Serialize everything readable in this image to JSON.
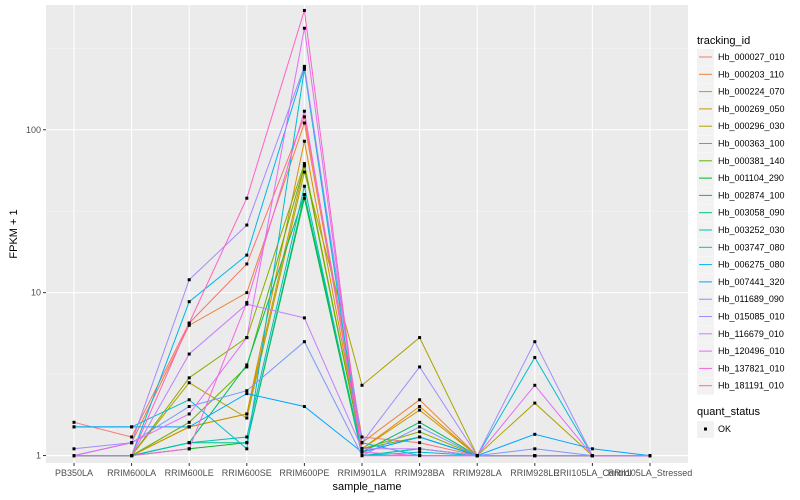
{
  "chart_data": {
    "type": "line",
    "xlabel": "sample_name",
    "ylabel": "FPKM + 1",
    "y_scale": "log10",
    "y_ticks": [
      "1",
      "10",
      "100"
    ],
    "categories": [
      "PB350LA",
      "RRIM600LA",
      "RRIM600LE",
      "RRIM600SE",
      "RRIM600PE",
      "RRIM901LA",
      "RRIM928BA",
      "RRIM928LA",
      "RRIM928LE",
      "RRII105LA_Control",
      "RRII105LA_Stressed"
    ],
    "legend_title": "tracking_id",
    "legend2_title": "quant_status",
    "legend2_entries": [
      "OK"
    ],
    "grid": true,
    "legend_position": "right",
    "series": [
      {
        "name": "Hb_000027_010",
        "color": "#F8766D",
        "values": [
          1.6,
          1.3,
          6.5,
          15,
          120,
          1.3,
          1.2,
          1,
          1,
          1,
          1
        ]
      },
      {
        "name": "Hb_000203_110",
        "color": "#EC8239",
        "values": [
          1,
          1.2,
          6.3,
          10,
          110,
          1.2,
          2.2,
          1,
          1,
          1,
          1
        ]
      },
      {
        "name": "Hb_000224_070",
        "color": "#DB8E00",
        "values": [
          1,
          1,
          1.5,
          1.8,
          85,
          1.1,
          2,
          1,
          1,
          1,
          1
        ]
      },
      {
        "name": "Hb_000269_050",
        "color": "#C79800",
        "values": [
          1,
          1,
          1.5,
          1.8,
          60,
          1.1,
          1.9,
          1,
          1,
          1,
          1
        ]
      },
      {
        "name": "Hb_000296_030",
        "color": "#AEA200",
        "values": [
          1,
          1,
          2.8,
          1.7,
          55,
          2.7,
          5.3,
          1,
          2.1,
          1,
          1
        ]
      },
      {
        "name": "Hb_000363_100",
        "color": "#8FAA00",
        "values": [
          1,
          1,
          3,
          5.3,
          62,
          1.1,
          1.4,
          1,
          1,
          1,
          1
        ]
      },
      {
        "name": "Hb_000381_140",
        "color": "#64B200",
        "values": [
          1,
          1,
          1.6,
          3.5,
          60,
          1.1,
          1.3,
          1,
          1,
          1,
          1
        ]
      },
      {
        "name": "Hb_001104_290",
        "color": "#00B81F",
        "values": [
          1,
          1,
          1.1,
          1.2,
          38,
          1,
          1.1,
          1,
          1,
          1,
          1
        ]
      },
      {
        "name": "Hb_002874_100",
        "color": "#00BD5C",
        "values": [
          1,
          1,
          1.2,
          3.6,
          40,
          1.05,
          1.6,
          1,
          1,
          1,
          1
        ]
      },
      {
        "name": "Hb_003058_090",
        "color": "#00C08E",
        "values": [
          1,
          1,
          1.2,
          1.2,
          40,
          1.05,
          1.3,
          1,
          1,
          1,
          1
        ]
      },
      {
        "name": "Hb_003252_030",
        "color": "#00C1B2",
        "values": [
          1,
          1,
          1.2,
          1.3,
          45,
          1,
          1.1,
          1,
          1,
          1,
          1
        ]
      },
      {
        "name": "Hb_003747_080",
        "color": "#00BDD0",
        "values": [
          1.5,
          1.5,
          2.2,
          1.1,
          235,
          1,
          1.05,
          1,
          4,
          1,
          1
        ]
      },
      {
        "name": "Hb_006275_080",
        "color": "#00B5EB",
        "values": [
          1,
          1,
          8.8,
          17,
          240,
          1.2,
          1,
          1,
          1,
          1,
          1
        ]
      },
      {
        "name": "Hb_007441_320",
        "color": "#00A5FF",
        "values": [
          1.5,
          1.5,
          1.5,
          2.4,
          2,
          1.05,
          1.3,
          1,
          1.35,
          1.1,
          1
        ]
      },
      {
        "name": "Hb_011689_090",
        "color": "#7997FF",
        "values": [
          1,
          1.2,
          2,
          2.5,
          5,
          1,
          1.5,
          1,
          1.1,
          1,
          1
        ]
      },
      {
        "name": "Hb_015085_010",
        "color": "#A58AFF",
        "values": [
          1.1,
          1.2,
          12,
          26,
          245,
          1.2,
          3.5,
          1,
          5,
          1,
          1
        ]
      },
      {
        "name": "Hb_116679_010",
        "color": "#C77CFF",
        "values": [
          1,
          1,
          4.2,
          8.5,
          7,
          1.1,
          1.1,
          1,
          1,
          1,
          1
        ]
      },
      {
        "name": "Hb_120496_010",
        "color": "#E26EF7",
        "values": [
          1,
          1.2,
          1.8,
          5.3,
          420,
          1,
          1,
          1,
          2.7,
          1,
          1
        ]
      },
      {
        "name": "Hb_137821_010",
        "color": "#F563E3",
        "values": [
          1,
          1,
          1.1,
          8.7,
          130,
          1.05,
          1,
          1,
          1,
          1,
          1
        ]
      },
      {
        "name": "Hb_181191_010",
        "color": "#FF61C3",
        "values": [
          1,
          1,
          6.5,
          38,
          540,
          1,
          1,
          1,
          1,
          1,
          1
        ]
      }
    ]
  }
}
